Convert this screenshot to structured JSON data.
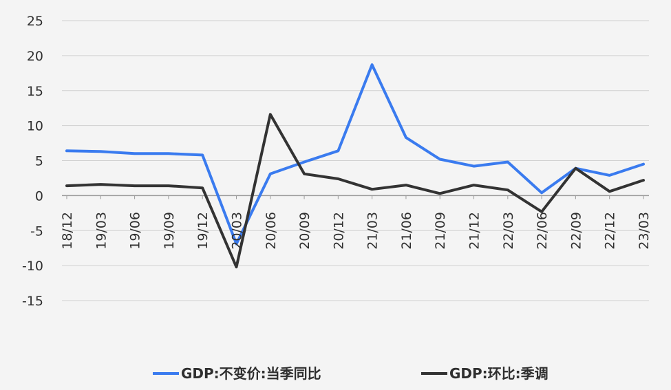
{
  "chart_data": {
    "type": "line",
    "title": "",
    "xlabel": "",
    "ylabel": "",
    "categories": [
      "18/12",
      "19/03",
      "19/06",
      "19/09",
      "19/12",
      "20/03",
      "20/06",
      "20/09",
      "20/12",
      "21/03",
      "21/06",
      "21/09",
      "21/12",
      "22/03",
      "22/06",
      "22/09",
      "22/12",
      "23/03"
    ],
    "series": [
      {
        "name": "GDP:不变价:当季同比",
        "color": "#3a7bef",
        "values": [
          6.4,
          6.3,
          6.0,
          6.0,
          5.8,
          -6.9,
          3.1,
          4.8,
          6.4,
          18.7,
          8.3,
          5.2,
          4.2,
          4.8,
          0.4,
          3.9,
          2.9,
          4.5
        ]
      },
      {
        "name": "GDP:环比:季调",
        "color": "#333333",
        "values": [
          1.4,
          1.6,
          1.4,
          1.4,
          1.1,
          -10.2,
          11.6,
          3.1,
          2.4,
          0.9,
          1.5,
          0.3,
          1.5,
          0.8,
          -2.3,
          3.9,
          0.6,
          2.2
        ]
      }
    ],
    "y_ticks": [
      25,
      20,
      15,
      10,
      5,
      0,
      -5,
      -10,
      -15
    ],
    "ylim": [
      -15,
      25
    ],
    "grid": true,
    "legend": "bottom"
  }
}
